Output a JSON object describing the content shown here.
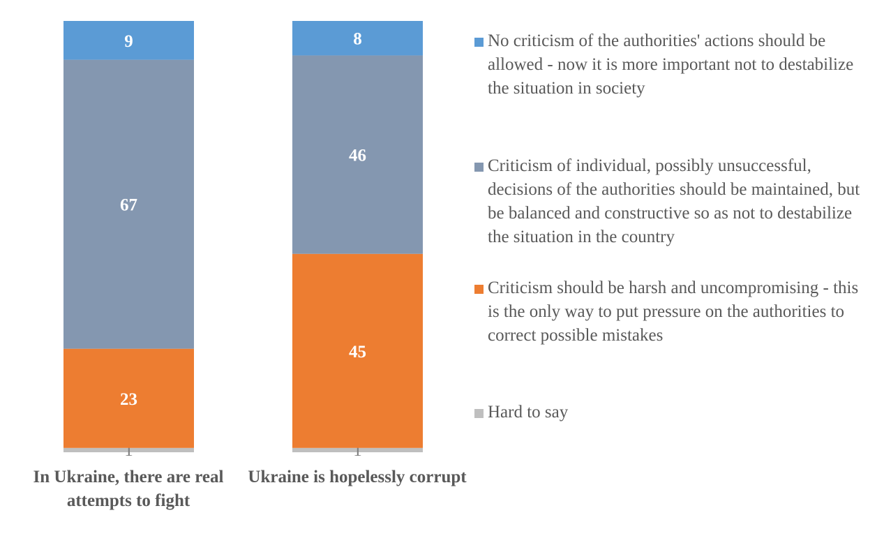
{
  "chart_data": {
    "type": "bar",
    "stacked": true,
    "categories": [
      "In Ukraine, there are real attempts to fight",
      "Ukraine is hopelessly corrupt"
    ],
    "series": [
      {
        "name": "Hard to say",
        "color": "#BFBFBF",
        "values": [
          1,
          1
        ]
      },
      {
        "name": "Criticism should be harsh and uncompromising - this is the only way to put pressure on the authorities to correct possible mistakes",
        "color": "#ED7D31",
        "values": [
          23,
          45
        ]
      },
      {
        "name": "Criticism of individual, possibly unsuccessful, decisions of the authorities should be maintained, but be balanced and constructive so as not to destabilize the situation in the country",
        "color": "#8497B0",
        "values": [
          67,
          46
        ]
      },
      {
        "name": "No criticism of the authorities' actions should be allowed - now it is more important not to destabilize the situation in society",
        "color": "#5B9BD5",
        "values": [
          9,
          8
        ]
      }
    ],
    "ylim": [
      0,
      100
    ],
    "legend_position": "right",
    "grid": false
  }
}
